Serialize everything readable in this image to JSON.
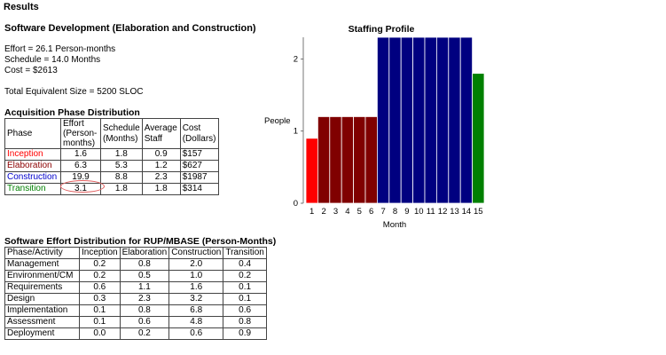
{
  "results_title": "Results",
  "software_dev": {
    "title": "Software Development (Elaboration and Construction)",
    "effort": "Effort = 26.1 Person-months",
    "schedule": "Schedule = 14.0 Months",
    "cost": "Cost = $2613",
    "size": "Total Equivalent Size = 5200 SLOC"
  },
  "acquisition": {
    "title": "Acquisition Phase Distribution",
    "headers": {
      "phase": "Phase",
      "effort": [
        "Effort",
        "(Person-",
        "months)"
      ],
      "schedule": [
        "Schedule",
        "(Months)"
      ],
      "staff": [
        "Average",
        "Staff"
      ],
      "cost": [
        "Cost",
        "(Dollars)"
      ]
    },
    "rows": [
      {
        "phase": "Inception",
        "effort": "1.6",
        "schedule": "1.8",
        "staff": "0.9",
        "cost": "$157"
      },
      {
        "phase": "Elaboration",
        "effort": "6.3",
        "schedule": "5.3",
        "staff": "1.2",
        "cost": "$627"
      },
      {
        "phase": "Construction",
        "effort": "19.9",
        "schedule": "8.8",
        "staff": "2.3",
        "cost": "$1987"
      },
      {
        "phase": "Transition",
        "effort": "3.1",
        "schedule": "1.8",
        "staff": "1.8",
        "cost": "$314"
      }
    ],
    "phase_colors": {
      "Inception": "#ff0000",
      "Elaboration": "#8b0000",
      "Construction": "#0000cc",
      "Transition": "#008000"
    }
  },
  "effort_dist": {
    "title": "Software Effort Distribution for RUP/MBASE (Person-Months)",
    "headers": [
      "Phase/Activity",
      "Inception",
      "Elaboration",
      "Construction",
      "Transition"
    ],
    "rows": [
      [
        "Management",
        "0.2",
        "0.8",
        "2.0",
        "0.4"
      ],
      [
        "Environment/CM",
        "0.2",
        "0.5",
        "1.0",
        "0.2"
      ],
      [
        "Requirements",
        "0.6",
        "1.1",
        "1.6",
        "0.1"
      ],
      [
        "Design",
        "0.3",
        "2.3",
        "3.2",
        "0.1"
      ],
      [
        "Implementation",
        "0.1",
        "0.8",
        "6.8",
        "0.6"
      ],
      [
        "Assessment",
        "0.1",
        "0.6",
        "4.8",
        "0.8"
      ],
      [
        "Deployment",
        "0.0",
        "0.2",
        "0.6",
        "0.9"
      ]
    ]
  },
  "chart_data": {
    "type": "bar",
    "title": "Staffing Profile",
    "xlabel": "Month",
    "ylabel": "People",
    "categories": [
      "1",
      "2",
      "3",
      "4",
      "5",
      "6",
      "7",
      "8",
      "9",
      "10",
      "11",
      "12",
      "13",
      "14",
      "15"
    ],
    "values": [
      0.9,
      1.2,
      1.2,
      1.2,
      1.2,
      1.2,
      2.3,
      2.3,
      2.3,
      2.3,
      2.3,
      2.3,
      2.3,
      2.3,
      1.8
    ],
    "bar_colors": [
      "#ff0000",
      "#800000",
      "#800000",
      "#800000",
      "#800000",
      "#800000",
      "#000080",
      "#000080",
      "#000080",
      "#000080",
      "#000080",
      "#000080",
      "#000080",
      "#000080",
      "#008000"
    ],
    "yticks": [
      "0",
      "1",
      "2"
    ],
    "ylim": [
      0,
      2.3
    ],
    "grid": false
  }
}
